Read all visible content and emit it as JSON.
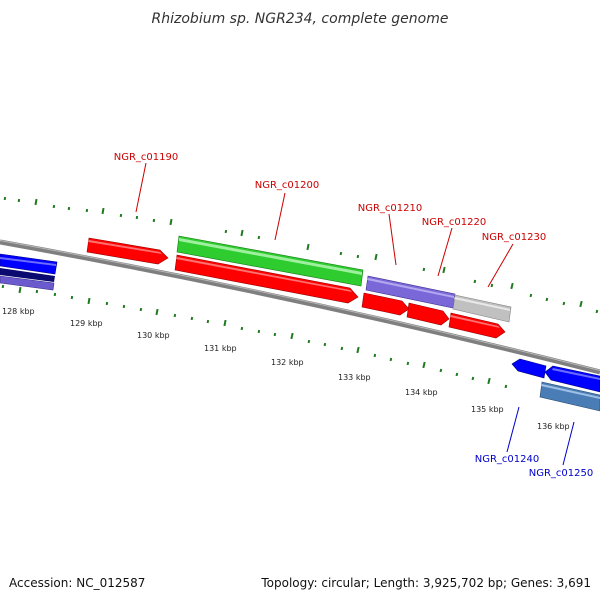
{
  "header": {
    "title": "Rhizobium sp. NGR234, complete genome"
  },
  "footer": {
    "accession": "Accession: NC_012587",
    "summary": "Topology: circular; Length: 3,925,702 bp; Genes: 3,691"
  },
  "colors": {
    "background": "#ffffff",
    "backbone": "#7f7f7f",
    "ticks": "#1e7a1e",
    "label_top": "#cc0000",
    "label_bottom": "#0000cc"
  },
  "scale": {
    "unit": "kbp",
    "labels": [
      "128 kbp",
      "129 kbp",
      "130 kbp",
      "131 kbp",
      "132 kbp",
      "133 kbp",
      "134 kbp",
      "135 kbp",
      "136 kbp"
    ]
  },
  "genes": [
    {
      "name": "NGR_c01190",
      "label_color": "#cc0000",
      "fill": "#ff0000"
    },
    {
      "name": "NGR_c01200",
      "label_color": "#cc0000",
      "fill": "#2ecc2e"
    },
    {
      "name": "NGR_c01210",
      "label_color": "#cc0000",
      "fill": "#7b68d8"
    },
    {
      "name": "NGR_c01220",
      "label_color": "#cc0000",
      "fill": "#c0c0c0"
    },
    {
      "name": "NGR_c01230",
      "label_color": "#cc0000",
      "fill": "#ff0000"
    },
    {
      "name": "NGR_c01240",
      "label_color": "#0000cc",
      "fill": "#0000ff"
    },
    {
      "name": "NGR_c01250",
      "label_color": "#0000cc",
      "fill": "#4a7db5"
    }
  ]
}
